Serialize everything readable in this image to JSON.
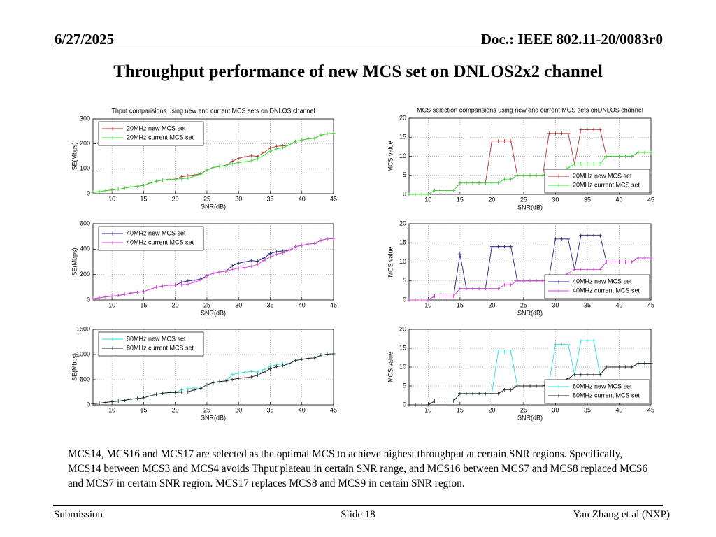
{
  "header": {
    "date": "6/27/2025",
    "doc": "Doc.: IEEE 802.11-20/0083r0"
  },
  "title": "Throughput performance of new MCS set on DNLOS2x2 channel",
  "body": "MCS14, MCS16 and MCS17 are selected as the optimal MCS to achieve highest throughput at certain SNR regions. Specifically, MCS14 between MCS3 and MCS4 avoids Thput plateau in certain SNR range, and MCS16 between MCS7 and MCS8 replaced MCS6 and MCS7 in certain SNR region. MCS17 replaces MCS8 and MCS9 in certain SNR region.",
  "footer": {
    "left": "Submission",
    "center": "Slide 18",
    "right": "Yan Zhang et al (NXP)"
  },
  "chart_data": [
    {
      "type": "line",
      "title": "Thput comparisions using new and current MCS sets on DNLOS channel",
      "xlabel": "SNR(dB)",
      "ylabel": "SE(Mbps)",
      "grid": true,
      "legend": "upper left",
      "x": [
        7,
        8,
        9,
        10,
        11,
        12,
        13,
        14,
        15,
        16,
        17,
        18,
        19,
        20,
        21,
        22,
        23,
        24,
        25,
        26,
        27,
        28,
        29,
        30,
        31,
        32,
        33,
        34,
        35,
        36,
        37,
        38,
        39,
        40,
        41,
        42,
        43,
        44,
        45
      ],
      "xlim": [
        7,
        45
      ],
      "xticks": [
        10,
        15,
        20,
        25,
        30,
        35,
        40,
        45
      ],
      "ylim": [
        0,
        300
      ],
      "yticks": [
        0,
        100,
        200,
        300
      ],
      "series": [
        {
          "name": "20MHz new MCS set",
          "color": "#b03030",
          "values": [
            5,
            8,
            12,
            15,
            18,
            22,
            27,
            30,
            33,
            42,
            50,
            55,
            58,
            58,
            68,
            72,
            75,
            80,
            95,
            105,
            110,
            113,
            130,
            142,
            148,
            152,
            150,
            165,
            183,
            190,
            192,
            195,
            210,
            215,
            220,
            222,
            235,
            240,
            242
          ]
        },
        {
          "name": "20MHz current MCS set",
          "color": "#33dd33",
          "values": [
            5,
            8,
            12,
            15,
            18,
            22,
            27,
            30,
            33,
            42,
            50,
            55,
            58,
            58,
            60,
            62,
            70,
            78,
            95,
            105,
            110,
            113,
            120,
            125,
            128,
            132,
            140,
            155,
            170,
            180,
            185,
            195,
            210,
            215,
            220,
            222,
            235,
            240,
            242
          ]
        }
      ]
    },
    {
      "type": "line",
      "xlabel": "SNR(dB)",
      "ylabel": "SE(Mbps)",
      "grid": true,
      "legend": "upper left",
      "x": [
        7,
        8,
        9,
        10,
        11,
        12,
        13,
        14,
        15,
        16,
        17,
        18,
        19,
        20,
        21,
        22,
        23,
        24,
        25,
        26,
        27,
        28,
        29,
        30,
        31,
        32,
        33,
        34,
        35,
        36,
        37,
        38,
        39,
        40,
        41,
        42,
        43,
        44,
        45
      ],
      "xlim": [
        7,
        45
      ],
      "xticks": [
        10,
        15,
        20,
        25,
        30,
        35,
        40,
        45
      ],
      "ylim": [
        0,
        600
      ],
      "yticks": [
        0,
        200,
        400,
        600
      ],
      "series": [
        {
          "name": "40MHz new MCS set",
          "color": "#202080",
          "values": [
            10,
            16,
            24,
            30,
            36,
            44,
            54,
            60,
            66,
            84,
            100,
            110,
            116,
            116,
            140,
            150,
            155,
            165,
            190,
            210,
            220,
            226,
            270,
            290,
            300,
            310,
            305,
            330,
            365,
            380,
            385,
            390,
            420,
            430,
            440,
            444,
            470,
            480,
            484
          ]
        },
        {
          "name": "40MHz current MCS set",
          "color": "#dd44dd",
          "values": [
            10,
            16,
            24,
            30,
            36,
            44,
            54,
            60,
            66,
            84,
            100,
            110,
            116,
            116,
            120,
            124,
            140,
            156,
            190,
            210,
            220,
            226,
            240,
            250,
            256,
            264,
            280,
            310,
            340,
            360,
            370,
            390,
            420,
            430,
            440,
            444,
            470,
            480,
            484
          ]
        }
      ]
    },
    {
      "type": "line",
      "xlabel": "SNR(dB)",
      "ylabel": "SE(Mbps)",
      "grid": true,
      "legend": "upper left",
      "x": [
        7,
        8,
        9,
        10,
        11,
        12,
        13,
        14,
        15,
        16,
        17,
        18,
        19,
        20,
        21,
        22,
        23,
        24,
        25,
        26,
        27,
        28,
        29,
        30,
        31,
        32,
        33,
        34,
        35,
        36,
        37,
        38,
        39,
        40,
        41,
        42,
        43,
        44,
        45
      ],
      "xlim": [
        7,
        45
      ],
      "xticks": [
        10,
        15,
        20,
        25,
        30,
        35,
        40,
        45
      ],
      "ylim": [
        0,
        1500
      ],
      "yticks": [
        0,
        500,
        1000,
        1500
      ],
      "series": [
        {
          "name": "80MHz new MCS set",
          "color": "#33dddd",
          "values": [
            20,
            34,
            50,
            63,
            76,
            92,
            113,
            126,
            139,
            176,
            210,
            231,
            244,
            244,
            300,
            320,
            335,
            328,
            399,
            441,
            462,
            475,
            600,
            630,
            650,
            660,
            650,
            700,
            760,
            800,
            810,
            819,
            882,
            903,
            924,
            932,
            987,
            1008,
            1016
          ]
        },
        {
          "name": "80MHz current MCS set",
          "color": "#222222",
          "values": [
            20,
            34,
            50,
            63,
            76,
            92,
            113,
            126,
            139,
            176,
            210,
            231,
            244,
            244,
            252,
            260,
            294,
            328,
            399,
            441,
            462,
            475,
            504,
            525,
            538,
            554,
            588,
            651,
            714,
            756,
            777,
            819,
            882,
            903,
            924,
            932,
            987,
            1008,
            1016
          ]
        }
      ]
    },
    {
      "type": "line",
      "title": "MCS selection comparisions using new and current MCS sets onDNLOS channel",
      "xlabel": "SNR(dB)",
      "ylabel": "MCS value",
      "grid": true,
      "legend": "lower right",
      "x": [
        7,
        8,
        9,
        10,
        11,
        12,
        13,
        14,
        15,
        16,
        17,
        18,
        19,
        20,
        21,
        22,
        23,
        24,
        25,
        26,
        27,
        28,
        29,
        30,
        31,
        32,
        33,
        34,
        35,
        36,
        37,
        38,
        39,
        40,
        41,
        42,
        43,
        44,
        45
      ],
      "xlim": [
        7,
        45
      ],
      "xticks": [
        10,
        15,
        20,
        25,
        30,
        35,
        40,
        45
      ],
      "ylim": [
        0,
        20
      ],
      "yticks": [
        0,
        5,
        10,
        15,
        20
      ],
      "series": [
        {
          "name": "20MHz new MCS set",
          "color": "#b03030",
          "values": [
            0,
            0,
            0,
            0,
            1,
            1,
            1,
            1,
            3,
            3,
            3,
            3,
            3,
            14,
            14,
            14,
            14,
            5,
            5,
            5,
            5,
            5,
            16,
            16,
            16,
            16,
            8,
            17,
            17,
            17,
            17,
            10,
            10,
            10,
            10,
            10,
            11,
            11,
            11
          ]
        },
        {
          "name": "20MHz current MCS set",
          "color": "#33dd33",
          "values": [
            0,
            0,
            0,
            0,
            1,
            1,
            1,
            1,
            3,
            3,
            3,
            3,
            3,
            3,
            3,
            4,
            4,
            5,
            5,
            5,
            5,
            5,
            6,
            6,
            6,
            7,
            8,
            8,
            8,
            8,
            8,
            10,
            10,
            10,
            10,
            10,
            11,
            11,
            11
          ]
        }
      ]
    },
    {
      "type": "line",
      "xlabel": "SNR(dB)",
      "ylabel": "MCS value",
      "grid": true,
      "legend": "lower right",
      "x": [
        7,
        8,
        9,
        10,
        11,
        12,
        13,
        14,
        15,
        16,
        17,
        18,
        19,
        20,
        21,
        22,
        23,
        24,
        25,
        26,
        27,
        28,
        29,
        30,
        31,
        32,
        33,
        34,
        35,
        36,
        37,
        38,
        39,
        40,
        41,
        42,
        43,
        44,
        45
      ],
      "xlim": [
        7,
        45
      ],
      "xticks": [
        10,
        15,
        20,
        25,
        30,
        35,
        40,
        45
      ],
      "ylim": [
        0,
        20
      ],
      "yticks": [
        0,
        5,
        10,
        15,
        20
      ],
      "series": [
        {
          "name": "40MHz new MCS set",
          "color": "#202080",
          "values": [
            0,
            0,
            0,
            0,
            1,
            1,
            1,
            1,
            12,
            3,
            3,
            3,
            3,
            14,
            14,
            14,
            14,
            5,
            5,
            5,
            5,
            5,
            6,
            16,
            16,
            16,
            8,
            17,
            17,
            17,
            17,
            10,
            10,
            10,
            10,
            10,
            11,
            11,
            11
          ]
        },
        {
          "name": "40MHz current MCS set",
          "color": "#dd44dd",
          "values": [
            0,
            0,
            0,
            0,
            1,
            1,
            1,
            1,
            3,
            3,
            3,
            3,
            3,
            3,
            3,
            4,
            4,
            5,
            5,
            5,
            5,
            5,
            6,
            6,
            6,
            7,
            8,
            8,
            8,
            8,
            8,
            10,
            10,
            10,
            10,
            10,
            11,
            11,
            11
          ]
        }
      ]
    },
    {
      "type": "line",
      "xlabel": "SNR(dB)",
      "ylabel": "MCS value",
      "grid": true,
      "legend": "lower right",
      "x": [
        7,
        8,
        9,
        10,
        11,
        12,
        13,
        14,
        15,
        16,
        17,
        18,
        19,
        20,
        21,
        22,
        23,
        24,
        25,
        26,
        27,
        28,
        29,
        30,
        31,
        32,
        33,
        34,
        35,
        36,
        37,
        38,
        39,
        40,
        41,
        42,
        43,
        44,
        45
      ],
      "xlim": [
        7,
        45
      ],
      "xticks": [
        10,
        15,
        20,
        25,
        30,
        35,
        40,
        45
      ],
      "ylim": [
        0,
        20
      ],
      "yticks": [
        0,
        5,
        10,
        15,
        20
      ],
      "series": [
        {
          "name": "80MHz new MCS set",
          "color": "#33dddd",
          "values": [
            0,
            0,
            0,
            0,
            1,
            1,
            1,
            1,
            3,
            3,
            3,
            3,
            3,
            3,
            14,
            14,
            14,
            5,
            5,
            5,
            5,
            5,
            6,
            16,
            16,
            16,
            8,
            17,
            17,
            17,
            8,
            10,
            10,
            10,
            10,
            10,
            11,
            11,
            11
          ]
        },
        {
          "name": "80MHz current MCS set",
          "color": "#222222",
          "values": [
            0,
            0,
            0,
            0,
            1,
            1,
            1,
            1,
            3,
            3,
            3,
            3,
            3,
            3,
            3,
            4,
            4,
            5,
            5,
            5,
            5,
            5,
            6,
            6,
            6,
            7,
            8,
            8,
            8,
            8,
            8,
            10,
            10,
            10,
            10,
            10,
            11,
            11,
            11
          ]
        }
      ]
    }
  ]
}
